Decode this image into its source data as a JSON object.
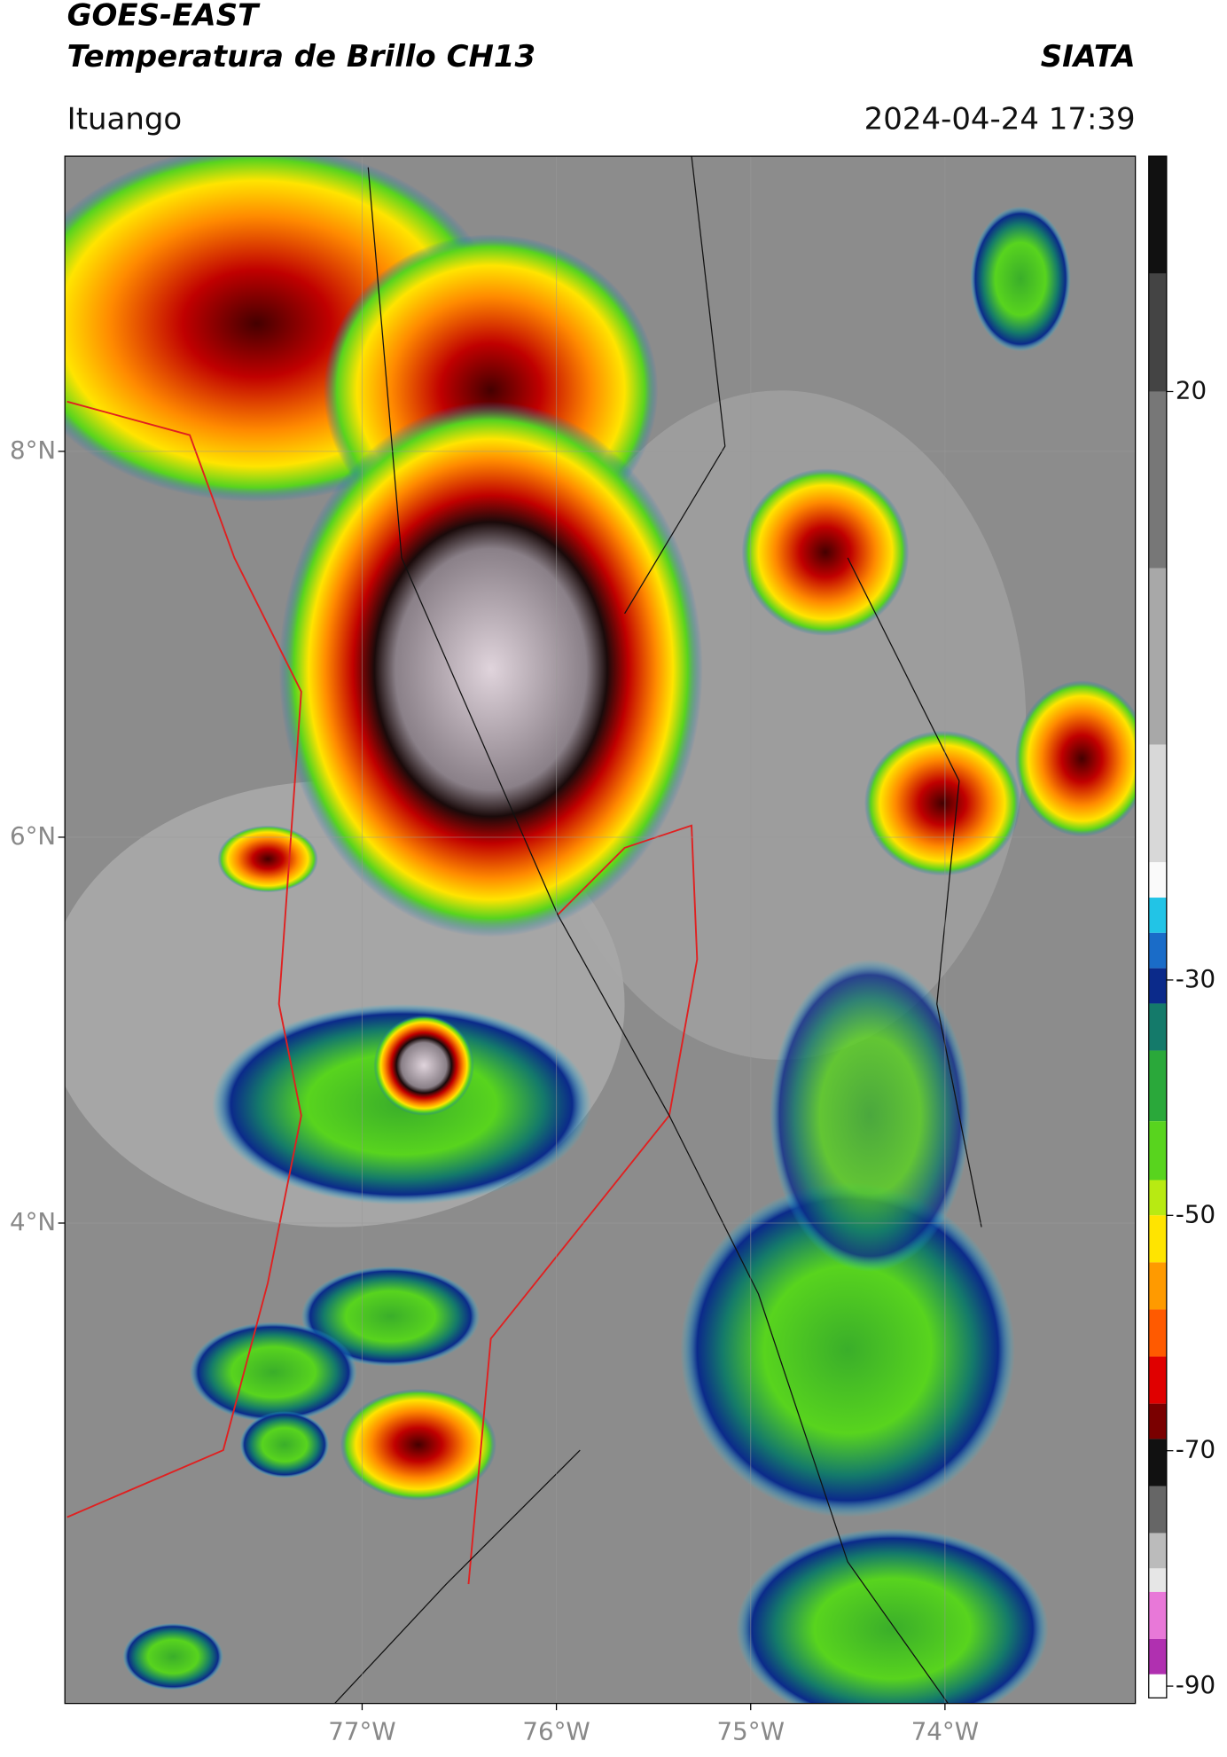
{
  "chart_data": {
    "type": "map",
    "title": "GOES-EAST",
    "subtitle": "Temperatura de Brillo CH13",
    "source": "SIATA",
    "location": "Ituango",
    "datetime": "2024-04-24 17:39",
    "xlim": [
      -78.53,
      -73.02
    ],
    "ylim": [
      1.51,
      9.53
    ],
    "xticks": [
      {
        "value": -77,
        "label": "77°W"
      },
      {
        "value": -76,
        "label": "76°W"
      },
      {
        "value": -75,
        "label": "75°W"
      },
      {
        "value": -74,
        "label": "74°W"
      }
    ],
    "yticks": [
      {
        "value": 8,
        "label": "8°N"
      },
      {
        "value": 6,
        "label": "6°N"
      },
      {
        "value": 4,
        "label": "4°N"
      }
    ],
    "grid": true,
    "clim": [
      -91,
      40
    ],
    "cticks": [
      20,
      -30,
      -50,
      -70,
      -90
    ],
    "colormap": [
      {
        "value": 40,
        "color": "#111111"
      },
      {
        "value": 30,
        "color": "#444444"
      },
      {
        "value": 20,
        "color": "#777777"
      },
      {
        "value": 5,
        "color": "#a8a8a8"
      },
      {
        "value": -10,
        "color": "#d8d8d8"
      },
      {
        "value": -20,
        "color": "#fafafa"
      },
      {
        "value": -23,
        "color": "#22c4e6"
      },
      {
        "value": -26,
        "color": "#1a6cc8"
      },
      {
        "value": -29,
        "color": "#0b2a8a"
      },
      {
        "value": -32,
        "color": "#147a6a"
      },
      {
        "value": -36,
        "color": "#2aa83a"
      },
      {
        "value": -42,
        "color": "#58d41e"
      },
      {
        "value": -47,
        "color": "#b8ea12"
      },
      {
        "value": -50,
        "color": "#ffe400"
      },
      {
        "value": -54,
        "color": "#ff9a00"
      },
      {
        "value": -58,
        "color": "#ff5a00"
      },
      {
        "value": -62,
        "color": "#e00000"
      },
      {
        "value": -66,
        "color": "#7a0000"
      },
      {
        "value": -69,
        "color": "#111111"
      },
      {
        "value": -73,
        "color": "#666666"
      },
      {
        "value": -77,
        "color": "#bbbbbb"
      },
      {
        "value": -80,
        "color": "#e6e6e6"
      },
      {
        "value": -82,
        "color": "#e878d8"
      },
      {
        "value": -86,
        "color": "#b030b0"
      },
      {
        "value": -89,
        "color": "#ffffff"
      }
    ]
  }
}
